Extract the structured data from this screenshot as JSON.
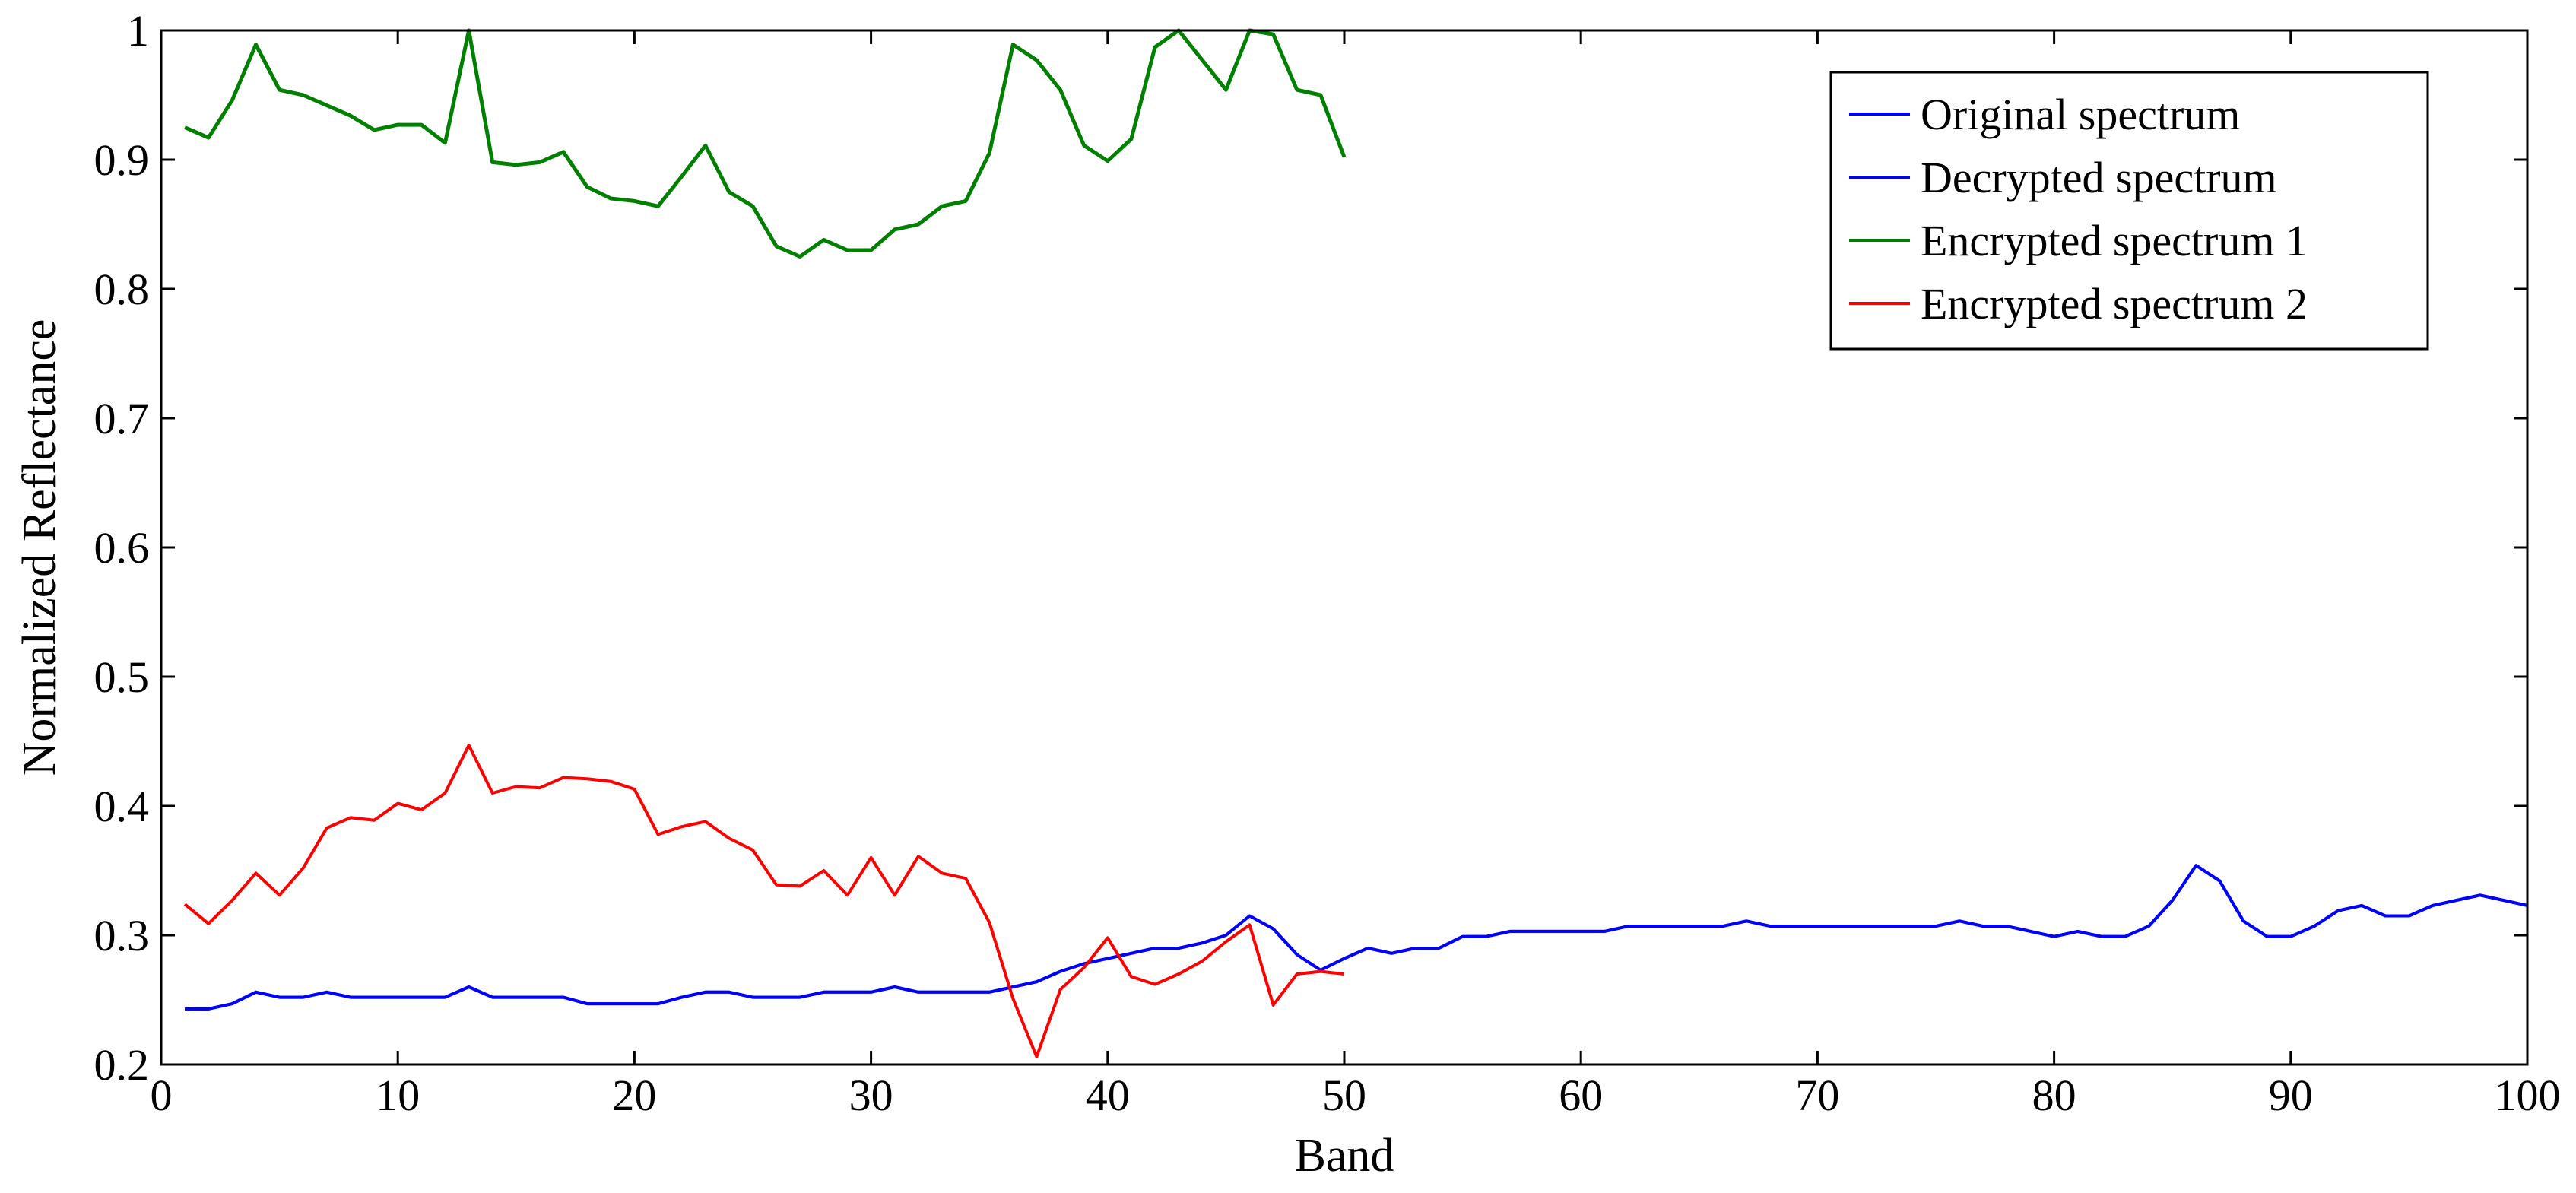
{
  "chart_data": {
    "type": "line",
    "title": "",
    "xlabel": "Band",
    "ylabel": "Normalized Reflectance",
    "xlim": [
      0,
      100
    ],
    "ylim": [
      0.2,
      1
    ],
    "x_ticks": [
      0,
      10,
      20,
      30,
      40,
      50,
      60,
      70,
      80,
      90,
      100
    ],
    "x_tick_labels": [
      "0",
      "10",
      "20",
      "30",
      "40",
      "50",
      "60",
      "70",
      "80",
      "90",
      "100"
    ],
    "y_ticks": [
      0.2,
      0.3,
      0.4,
      0.5,
      0.6,
      0.7,
      0.8,
      0.9,
      1
    ],
    "y_tick_labels": [
      "0.2",
      "0.3",
      "0.4",
      "0.5",
      "0.6",
      "0.7",
      "0.8",
      "0.9",
      "1"
    ],
    "grid": false,
    "legend_position": "top-right",
    "series": [
      {
        "name": "Original spectrum",
        "color": "#0000ff",
        "x": [
          1,
          2,
          3,
          4,
          5,
          6,
          7,
          8,
          9,
          10,
          11,
          12,
          13,
          14,
          15,
          16,
          17,
          18,
          19,
          20,
          21,
          22,
          23,
          24,
          25,
          26,
          27,
          28,
          29,
          30,
          31,
          32,
          33,
          34,
          35,
          36,
          37,
          38,
          39,
          40,
          41,
          42,
          43,
          44,
          45,
          46,
          47,
          48,
          49,
          50,
          51,
          52,
          53,
          54,
          55,
          56,
          57,
          58,
          59,
          60,
          61,
          62,
          63,
          64,
          65,
          66,
          67,
          68,
          69,
          70,
          71,
          72,
          73,
          74,
          75,
          76,
          77,
          78,
          79,
          80,
          81,
          82,
          83,
          84,
          85,
          86,
          87,
          88,
          89,
          90,
          91,
          92,
          93,
          94,
          95,
          96,
          97,
          98,
          99,
          100
        ],
        "values": [
          0.243,
          0.243,
          0.247,
          0.256,
          0.252,
          0.252,
          0.256,
          0.252,
          0.252,
          0.252,
          0.252,
          0.252,
          0.26,
          0.252,
          0.252,
          0.252,
          0.252,
          0.247,
          0.247,
          0.247,
          0.247,
          0.252,
          0.256,
          0.256,
          0.252,
          0.252,
          0.252,
          0.256,
          0.256,
          0.256,
          0.26,
          0.256,
          0.256,
          0.256,
          0.256,
          0.26,
          0.264,
          0.272,
          0.278,
          0.282,
          0.286,
          0.29,
          0.29,
          0.294,
          0.3,
          0.315,
          0.305,
          0.285,
          0.273,
          0.282,
          0.29,
          0.286,
          0.29,
          0.29,
          0.299,
          0.299,
          0.303,
          0.303,
          0.303,
          0.303,
          0.303,
          0.307,
          0.307,
          0.307,
          0.307,
          0.307,
          0.311,
          0.307,
          0.307,
          0.307,
          0.307,
          0.307,
          0.307,
          0.307,
          0.307,
          0.311,
          0.307,
          0.307,
          0.303,
          0.299,
          0.303,
          0.299,
          0.299,
          0.307,
          0.327,
          0.354,
          0.342,
          0.311,
          0.299,
          0.299,
          0.307,
          0.319,
          0.323,
          0.315,
          0.315,
          0.323,
          0.327,
          0.331,
          0.327,
          0.323
        ]
      },
      {
        "name": "Decrypted spectrum",
        "color": "#0000ff",
        "x": [
          1,
          2,
          3,
          4,
          5,
          6,
          7,
          8,
          9,
          10,
          11,
          12,
          13,
          14,
          15,
          16,
          17,
          18,
          19,
          20,
          21,
          22,
          23,
          24,
          25,
          26,
          27,
          28,
          29,
          30,
          31,
          32,
          33,
          34,
          35,
          36,
          37,
          38,
          39,
          40,
          41,
          42,
          43,
          44,
          45,
          46,
          47,
          48,
          49,
          50,
          51,
          52,
          53,
          54,
          55,
          56,
          57,
          58,
          59,
          60,
          61,
          62,
          63,
          64,
          65,
          66,
          67,
          68,
          69,
          70,
          71,
          72,
          73,
          74,
          75,
          76,
          77,
          78,
          79,
          80,
          81,
          82,
          83,
          84,
          85,
          86,
          87,
          88,
          89,
          90,
          91,
          92,
          93,
          94,
          95,
          96,
          97,
          98,
          99,
          100
        ],
        "values": [
          0.243,
          0.243,
          0.247,
          0.256,
          0.252,
          0.252,
          0.256,
          0.252,
          0.252,
          0.252,
          0.252,
          0.252,
          0.26,
          0.252,
          0.252,
          0.252,
          0.252,
          0.247,
          0.247,
          0.247,
          0.247,
          0.252,
          0.256,
          0.256,
          0.252,
          0.252,
          0.252,
          0.256,
          0.256,
          0.256,
          0.26,
          0.256,
          0.256,
          0.256,
          0.256,
          0.26,
          0.264,
          0.272,
          0.278,
          0.282,
          0.286,
          0.29,
          0.29,
          0.294,
          0.3,
          0.315,
          0.305,
          0.285,
          0.273,
          0.282,
          0.29,
          0.286,
          0.29,
          0.29,
          0.299,
          0.299,
          0.303,
          0.303,
          0.303,
          0.303,
          0.303,
          0.307,
          0.307,
          0.307,
          0.307,
          0.307,
          0.311,
          0.307,
          0.307,
          0.307,
          0.307,
          0.307,
          0.307,
          0.307,
          0.307,
          0.311,
          0.307,
          0.307,
          0.303,
          0.299,
          0.303,
          0.299,
          0.299,
          0.307,
          0.327,
          0.354,
          0.342,
          0.311,
          0.299,
          0.299,
          0.307,
          0.319,
          0.323,
          0.315,
          0.315,
          0.323,
          0.327,
          0.331,
          0.327,
          0.323
        ]
      },
      {
        "name": "Encrypted spectrum 1",
        "color": "#008000",
        "x": [
          1,
          2,
          3,
          4,
          5,
          6,
          7,
          8,
          9,
          10,
          11,
          12,
          13,
          14,
          15,
          16,
          17,
          18,
          19,
          20,
          21,
          22,
          23,
          24,
          25,
          26,
          27,
          28,
          29,
          30,
          31,
          32,
          33,
          34,
          35,
          36,
          37,
          38,
          39,
          40,
          41,
          42,
          43,
          44,
          45,
          46,
          47,
          48,
          49,
          50
        ],
        "values": [
          0.925,
          0.917,
          0.946,
          0.989,
          0.954,
          0.95,
          0.942,
          0.934,
          0.923,
          0.927,
          0.927,
          0.913,
          1,
          0.898,
          0.896,
          0.898,
          0.906,
          0.879,
          0.87,
          0.868,
          0.864,
          0.887,
          0.911,
          0.875,
          0.864,
          0.833,
          0.825,
          0.838,
          0.83,
          0.83,
          0.846,
          0.85,
          0.864,
          0.868,
          0.905,
          0.989,
          0.977,
          0.954,
          0.911,
          0.899,
          0.916,
          0.987,
          1,
          0.977,
          0.954,
          1,
          0.997,
          0.954,
          0.95,
          0.902
        ]
      },
      {
        "name": "Encrypted spectrum 2",
        "color": "#ff0000",
        "x": [
          1,
          2,
          3,
          4,
          5,
          6,
          7,
          8,
          9,
          10,
          11,
          12,
          13,
          14,
          15,
          16,
          17,
          18,
          19,
          20,
          21,
          22,
          23,
          24,
          25,
          26,
          27,
          28,
          29,
          30,
          31,
          32,
          33,
          34,
          35,
          36,
          37,
          38,
          39,
          40,
          41,
          42,
          43,
          44,
          45,
          46,
          47,
          48,
          49,
          50
        ],
        "values": [
          0.324,
          0.309,
          0.327,
          0.348,
          0.331,
          0.352,
          0.383,
          0.391,
          0.389,
          0.402,
          0.397,
          0.41,
          0.447,
          0.41,
          0.415,
          0.414,
          0.422,
          0.421,
          0.419,
          0.413,
          0.378,
          0.384,
          0.388,
          0.375,
          0.366,
          0.339,
          0.338,
          0.35,
          0.331,
          0.36,
          0.331,
          0.361,
          0.348,
          0.344,
          0.31,
          0.251,
          0.206,
          0.258,
          0.275,
          0.298,
          0.268,
          0.262,
          0.27,
          0.28,
          0.295,
          0.308,
          0.246,
          0.27,
          0.272,
          0.27
        ]
      }
    ]
  }
}
